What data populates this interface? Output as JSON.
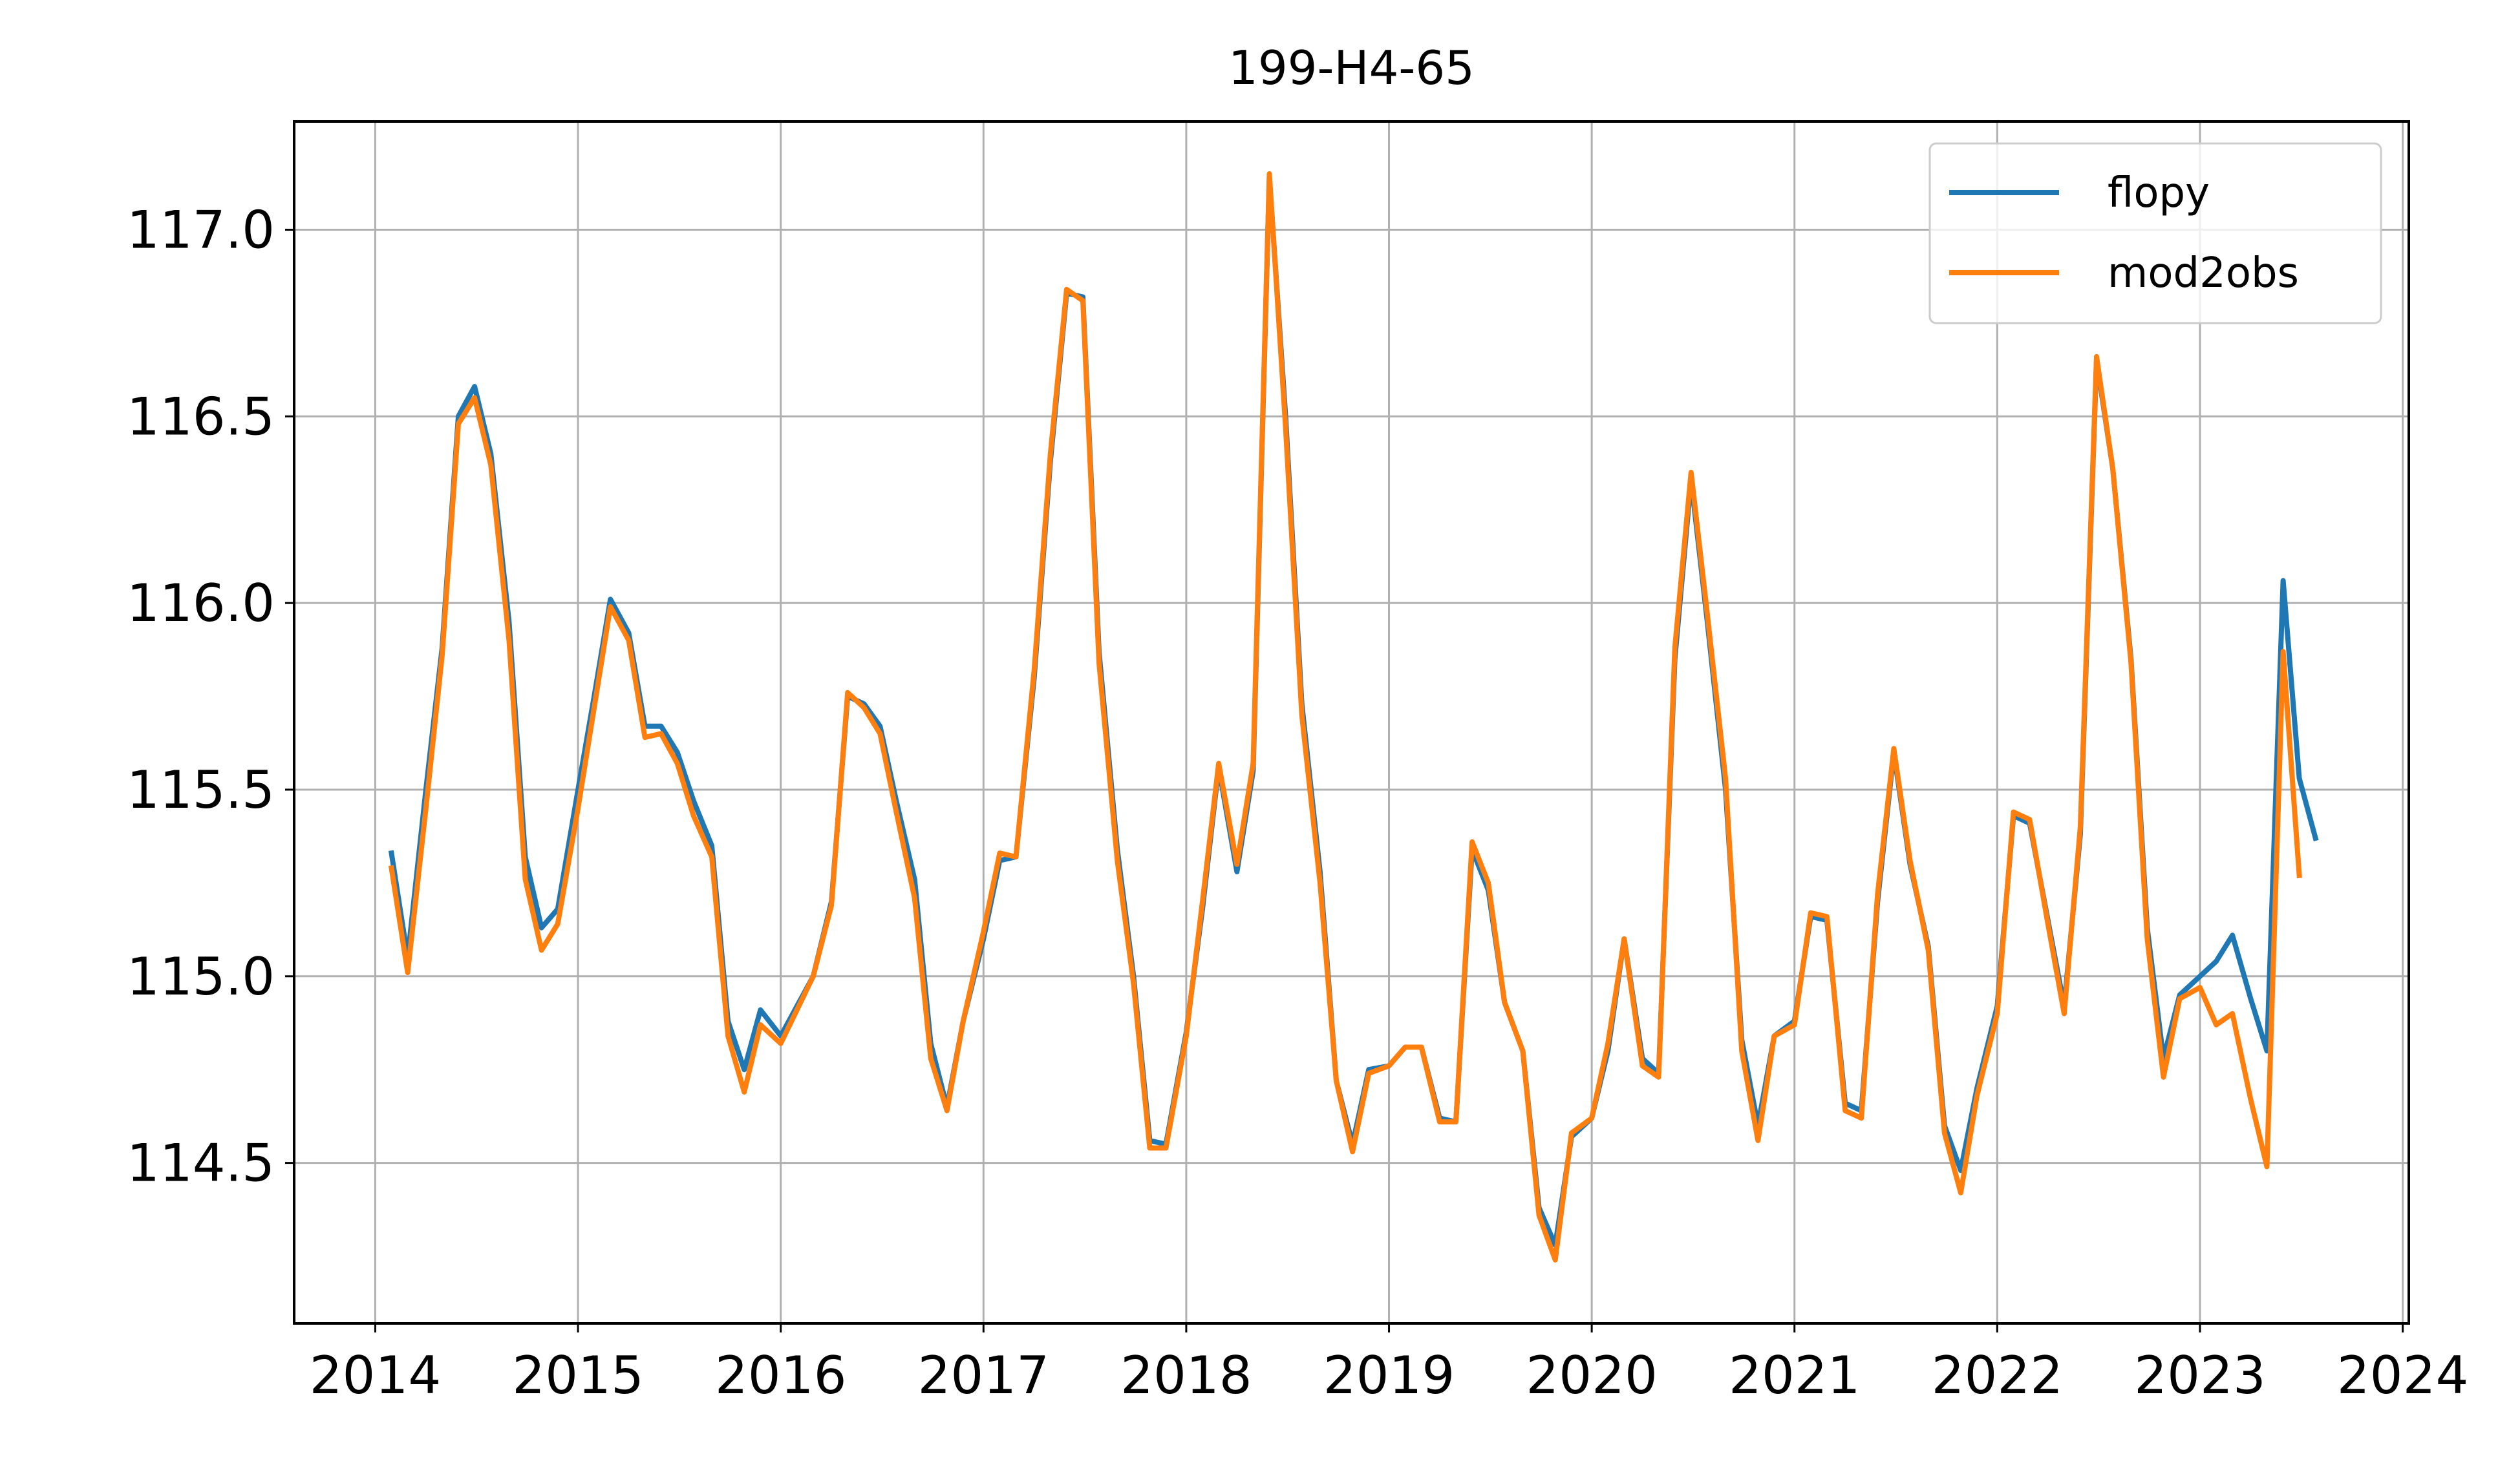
{
  "chart_data": {
    "type": "line",
    "title": "199-H4-65",
    "xlabel": "",
    "ylabel": "",
    "xlim": [
      2013.6,
      2024.03
    ],
    "ylim": [
      114.07,
      117.29
    ],
    "xticks": [
      2014,
      2015,
      2016,
      2017,
      2018,
      2019,
      2020,
      2021,
      2022,
      2023,
      2024
    ],
    "xtick_labels": [
      "2014",
      "2015",
      "2016",
      "2017",
      "2018",
      "2019",
      "2020",
      "2021",
      "2022",
      "2023",
      "2024"
    ],
    "yticks": [
      114.5,
      115.0,
      115.5,
      116.0,
      116.5,
      117.0
    ],
    "ytick_labels": [
      "114.5",
      "115.0",
      "115.5",
      "116.0",
      "116.5",
      "117.0"
    ],
    "grid": true,
    "legend_position": "top-right",
    "series": [
      {
        "name": "flopy",
        "color": "#1f77b4",
        "points": [
          [
            2014.08,
            115.33
          ],
          [
            2014.16,
            115.05
          ],
          [
            2014.25,
            115.5
          ],
          [
            2014.33,
            115.88
          ],
          [
            2014.41,
            116.5
          ],
          [
            2014.49,
            116.58
          ],
          [
            2014.57,
            116.4
          ],
          [
            2014.66,
            115.95
          ],
          [
            2014.74,
            115.32
          ],
          [
            2014.82,
            115.13
          ],
          [
            2014.9,
            115.18
          ],
          [
            2015.0,
            115.5
          ],
          [
            2015.08,
            115.75
          ],
          [
            2015.16,
            116.01
          ],
          [
            2015.25,
            115.92
          ],
          [
            2015.33,
            115.67
          ],
          [
            2015.41,
            115.67
          ],
          [
            2015.49,
            115.6
          ],
          [
            2015.57,
            115.47
          ],
          [
            2015.66,
            115.35
          ],
          [
            2015.74,
            114.88
          ],
          [
            2015.82,
            114.75
          ],
          [
            2015.9,
            114.91
          ],
          [
            2016.0,
            114.84
          ],
          [
            2016.16,
            115.0
          ],
          [
            2016.25,
            115.2
          ],
          [
            2016.33,
            115.75
          ],
          [
            2016.41,
            115.73
          ],
          [
            2016.49,
            115.67
          ],
          [
            2016.57,
            115.47
          ],
          [
            2016.66,
            115.26
          ],
          [
            2016.74,
            114.82
          ],
          [
            2016.82,
            114.65
          ],
          [
            2016.9,
            114.88
          ],
          [
            2017.0,
            115.1
          ],
          [
            2017.08,
            115.31
          ],
          [
            2017.16,
            115.32
          ],
          [
            2017.25,
            115.8
          ],
          [
            2017.33,
            116.38
          ],
          [
            2017.41,
            116.83
          ],
          [
            2017.49,
            116.82
          ],
          [
            2017.57,
            115.87
          ],
          [
            2017.66,
            115.34
          ],
          [
            2017.74,
            115.0
          ],
          [
            2017.82,
            114.56
          ],
          [
            2017.9,
            114.55
          ],
          [
            2018.0,
            114.85
          ],
          [
            2018.08,
            115.18
          ],
          [
            2018.16,
            115.56
          ],
          [
            2018.25,
            115.28
          ],
          [
            2018.33,
            115.55
          ],
          [
            2018.41,
            117.14
          ],
          [
            2018.49,
            116.5
          ],
          [
            2018.57,
            115.73
          ],
          [
            2018.66,
            115.28
          ],
          [
            2018.74,
            114.72
          ],
          [
            2018.82,
            114.55
          ],
          [
            2018.9,
            114.75
          ],
          [
            2019.0,
            114.76
          ],
          [
            2019.08,
            114.81
          ],
          [
            2019.16,
            114.81
          ],
          [
            2019.25,
            114.62
          ],
          [
            2019.33,
            114.61
          ],
          [
            2019.41,
            115.34
          ],
          [
            2019.49,
            115.23
          ],
          [
            2019.57,
            114.93
          ],
          [
            2019.66,
            114.8
          ],
          [
            2019.74,
            114.38
          ],
          [
            2019.82,
            114.28
          ],
          [
            2019.9,
            114.57
          ],
          [
            2020.0,
            114.62
          ],
          [
            2020.08,
            114.8
          ],
          [
            2020.16,
            115.1
          ],
          [
            2020.25,
            114.78
          ],
          [
            2020.33,
            114.74
          ],
          [
            2020.41,
            115.85
          ],
          [
            2020.49,
            116.33
          ],
          [
            2020.57,
            115.95
          ],
          [
            2020.66,
            115.5
          ],
          [
            2020.74,
            114.83
          ],
          [
            2020.82,
            114.6
          ],
          [
            2020.9,
            114.84
          ],
          [
            2021.0,
            114.88
          ],
          [
            2021.08,
            115.16
          ],
          [
            2021.16,
            115.15
          ],
          [
            2021.25,
            114.66
          ],
          [
            2021.33,
            114.64
          ],
          [
            2021.41,
            115.2
          ],
          [
            2021.49,
            115.6
          ],
          [
            2021.57,
            115.3
          ],
          [
            2021.66,
            115.08
          ],
          [
            2021.74,
            114.6
          ],
          [
            2021.82,
            114.48
          ],
          [
            2021.9,
            114.7
          ],
          [
            2022.0,
            114.92
          ],
          [
            2022.08,
            115.43
          ],
          [
            2022.16,
            115.41
          ],
          [
            2022.25,
            115.15
          ],
          [
            2022.33,
            114.92
          ],
          [
            2022.41,
            115.38
          ],
          [
            2022.49,
            116.65
          ],
          [
            2022.57,
            116.36
          ],
          [
            2022.66,
            115.85
          ],
          [
            2022.74,
            115.13
          ],
          [
            2022.82,
            114.78
          ],
          [
            2022.9,
            114.95
          ],
          [
            2023.0,
            115.0
          ],
          [
            2023.08,
            115.04
          ],
          [
            2023.16,
            115.11
          ],
          [
            2023.25,
            114.94
          ],
          [
            2023.33,
            114.8
          ],
          [
            2023.41,
            116.06
          ],
          [
            2023.49,
            115.53
          ],
          [
            2023.57,
            115.37
          ]
        ]
      },
      {
        "name": "mod2obs",
        "color": "#ff7f0e",
        "points": [
          [
            2014.08,
            115.29
          ],
          [
            2014.16,
            115.01
          ],
          [
            2014.25,
            115.45
          ],
          [
            2014.33,
            115.86
          ],
          [
            2014.41,
            116.48
          ],
          [
            2014.49,
            116.55
          ],
          [
            2014.57,
            116.37
          ],
          [
            2014.66,
            115.9
          ],
          [
            2014.74,
            115.26
          ],
          [
            2014.82,
            115.07
          ],
          [
            2014.9,
            115.14
          ],
          [
            2015.0,
            115.45
          ],
          [
            2015.08,
            115.72
          ],
          [
            2015.16,
            115.99
          ],
          [
            2015.25,
            115.9
          ],
          [
            2015.33,
            115.64
          ],
          [
            2015.41,
            115.65
          ],
          [
            2015.49,
            115.57
          ],
          [
            2015.57,
            115.43
          ],
          [
            2015.66,
            115.32
          ],
          [
            2015.74,
            114.84
          ],
          [
            2015.82,
            114.69
          ],
          [
            2015.9,
            114.87
          ],
          [
            2016.0,
            114.82
          ],
          [
            2016.16,
            115.0
          ],
          [
            2016.25,
            115.19
          ],
          [
            2016.33,
            115.76
          ],
          [
            2016.41,
            115.72
          ],
          [
            2016.49,
            115.65
          ],
          [
            2016.57,
            115.44
          ],
          [
            2016.66,
            115.21
          ],
          [
            2016.74,
            114.78
          ],
          [
            2016.82,
            114.64
          ],
          [
            2016.9,
            114.88
          ],
          [
            2017.0,
            115.12
          ],
          [
            2017.08,
            115.33
          ],
          [
            2017.16,
            115.32
          ],
          [
            2017.25,
            115.82
          ],
          [
            2017.33,
            116.4
          ],
          [
            2017.41,
            116.84
          ],
          [
            2017.49,
            116.81
          ],
          [
            2017.57,
            115.84
          ],
          [
            2017.66,
            115.31
          ],
          [
            2017.74,
            114.98
          ],
          [
            2017.82,
            114.54
          ],
          [
            2017.9,
            114.54
          ],
          [
            2018.0,
            114.84
          ],
          [
            2018.08,
            115.2
          ],
          [
            2018.16,
            115.57
          ],
          [
            2018.25,
            115.3
          ],
          [
            2018.33,
            115.57
          ],
          [
            2018.41,
            117.15
          ],
          [
            2018.49,
            116.47
          ],
          [
            2018.57,
            115.7
          ],
          [
            2018.66,
            115.25
          ],
          [
            2018.74,
            114.72
          ],
          [
            2018.82,
            114.53
          ],
          [
            2018.9,
            114.74
          ],
          [
            2019.0,
            114.76
          ],
          [
            2019.08,
            114.81
          ],
          [
            2019.16,
            114.81
          ],
          [
            2019.25,
            114.61
          ],
          [
            2019.33,
            114.61
          ],
          [
            2019.41,
            115.36
          ],
          [
            2019.49,
            115.25
          ],
          [
            2019.57,
            114.93
          ],
          [
            2019.66,
            114.8
          ],
          [
            2019.74,
            114.36
          ],
          [
            2019.82,
            114.24
          ],
          [
            2019.9,
            114.58
          ],
          [
            2020.0,
            114.62
          ],
          [
            2020.08,
            114.82
          ],
          [
            2020.16,
            115.1
          ],
          [
            2020.25,
            114.76
          ],
          [
            2020.33,
            114.73
          ],
          [
            2020.41,
            115.88
          ],
          [
            2020.49,
            116.35
          ],
          [
            2020.57,
            115.97
          ],
          [
            2020.66,
            115.53
          ],
          [
            2020.74,
            114.8
          ],
          [
            2020.82,
            114.56
          ],
          [
            2020.9,
            114.84
          ],
          [
            2021.0,
            114.87
          ],
          [
            2021.08,
            115.17
          ],
          [
            2021.16,
            115.16
          ],
          [
            2021.25,
            114.64
          ],
          [
            2021.33,
            114.62
          ],
          [
            2021.41,
            115.22
          ],
          [
            2021.49,
            115.61
          ],
          [
            2021.57,
            115.31
          ],
          [
            2021.66,
            115.07
          ],
          [
            2021.74,
            114.58
          ],
          [
            2021.82,
            114.42
          ],
          [
            2021.9,
            114.68
          ],
          [
            2022.0,
            114.9
          ],
          [
            2022.08,
            115.44
          ],
          [
            2022.16,
            115.42
          ],
          [
            2022.25,
            115.14
          ],
          [
            2022.33,
            114.9
          ],
          [
            2022.41,
            115.4
          ],
          [
            2022.49,
            116.66
          ],
          [
            2022.57,
            116.36
          ],
          [
            2022.66,
            115.84
          ],
          [
            2022.74,
            115.1
          ],
          [
            2022.82,
            114.73
          ],
          [
            2022.9,
            114.94
          ],
          [
            2023.0,
            114.97
          ],
          [
            2023.08,
            114.87
          ],
          [
            2023.16,
            114.9
          ],
          [
            2023.25,
            114.67
          ],
          [
            2023.33,
            114.49
          ],
          [
            2023.41,
            115.87
          ],
          [
            2023.49,
            115.27
          ]
        ]
      }
    ]
  }
}
